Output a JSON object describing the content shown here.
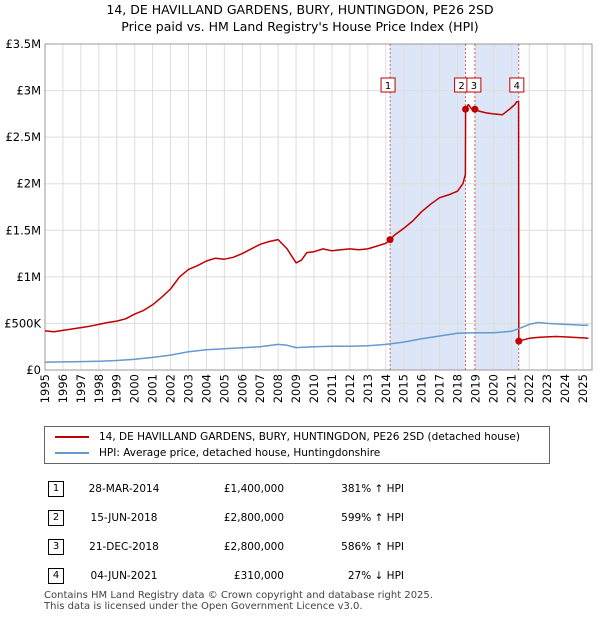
{
  "title_line1": "14, DE HAVILLAND GARDENS, BURY, HUNTINGDON, PE26 2SD",
  "title_line2": "Price paid vs. HM Land Registry's House Price Index (HPI)",
  "colors": {
    "property": "#c00000",
    "hpi": "#6699cc",
    "shade": "#dde6f7",
    "grid": "#dddddd"
  },
  "chart_data": {
    "type": "line",
    "xlim": [
      1995,
      2025.5
    ],
    "ylim": [
      0,
      3500000
    ],
    "y_ticks": [
      {
        "value": 0,
        "label": "£0"
      },
      {
        "value": 500000,
        "label": "£500K"
      },
      {
        "value": 1000000,
        "label": "£1M"
      },
      {
        "value": 1500000,
        "label": "£1.5M"
      },
      {
        "value": 2000000,
        "label": "£2M"
      },
      {
        "value": 2500000,
        "label": "£2.5M"
      },
      {
        "value": 3000000,
        "label": "£3M"
      },
      {
        "value": 3500000,
        "label": "£3.5M"
      }
    ],
    "x_ticks": [
      "1995",
      "1996",
      "1997",
      "1998",
      "1999",
      "2000",
      "2001",
      "2002",
      "2003",
      "2004",
      "2005",
      "2006",
      "2007",
      "2008",
      "2009",
      "2010",
      "2011",
      "2012",
      "2013",
      "2014",
      "2015",
      "2016",
      "2017",
      "2018",
      "2019",
      "2020",
      "2021",
      "2022",
      "2023",
      "2024",
      "2025"
    ],
    "shaded_ranges": [
      [
        2014.24,
        2018.45
      ],
      [
        2018.97,
        2021.42
      ]
    ],
    "series": [
      {
        "name": "14, DE HAVILLAND GARDENS, BURY, HUNTINGDON, PE26 2SD (detached house)",
        "x": [
          1995,
          1995.5,
          1996,
          1996.5,
          1997,
          1997.5,
          1998,
          1998.5,
          1999,
          1999.5,
          2000,
          2000.5,
          2001,
          2001.5,
          2002,
          2002.5,
          2003,
          2003.5,
          2004,
          2004.5,
          2005,
          2005.5,
          2006,
          2006.5,
          2007,
          2007.5,
          2008,
          2008.5,
          2009,
          2009.3,
          2009.6,
          2010,
          2010.5,
          2011,
          2011.5,
          2012,
          2012.5,
          2013,
          2013.5,
          2014,
          2014.24,
          2014.5,
          2015,
          2015.5,
          2016,
          2016.5,
          2017,
          2017.5,
          2018,
          2018.3,
          2018.44,
          2018.45,
          2018.6,
          2018.8,
          2018.97,
          2019.2,
          2019.6,
          2020,
          2020.5,
          2020.9,
          2021.2,
          2021.3,
          2021.41,
          2021.42,
          2021.6,
          2022,
          2022.5,
          2023,
          2023.5,
          2024,
          2024.5,
          2025,
          2025.3
        ],
        "y": [
          420000,
          410000,
          425000,
          440000,
          455000,
          470000,
          490000,
          510000,
          525000,
          550000,
          600000,
          640000,
          700000,
          780000,
          870000,
          1000000,
          1080000,
          1120000,
          1170000,
          1200000,
          1190000,
          1210000,
          1250000,
          1300000,
          1350000,
          1380000,
          1400000,
          1300000,
          1150000,
          1180000,
          1260000,
          1270000,
          1300000,
          1280000,
          1290000,
          1300000,
          1290000,
          1300000,
          1330000,
          1360000,
          1400000,
          1450000,
          1520000,
          1600000,
          1700000,
          1780000,
          1850000,
          1880000,
          1920000,
          2000000,
          2100000,
          2800000,
          2850000,
          2800000,
          2800000,
          2780000,
          2760000,
          2750000,
          2740000,
          2800000,
          2850000,
          2880000,
          2880000,
          310000,
          320000,
          340000,
          350000,
          355000,
          360000,
          355000,
          350000,
          345000,
          340000
        ]
      },
      {
        "name": "HPI: Average price, detached house, Huntingdonshire",
        "x": [
          1995,
          1996,
          1997,
          1998,
          1999,
          2000,
          2001,
          2002,
          2003,
          2004,
          2005,
          2006,
          2007,
          2008,
          2008.5,
          2009,
          2010,
          2011,
          2012,
          2013,
          2014,
          2015,
          2016,
          2017,
          2018,
          2019,
          2020,
          2021,
          2021.5,
          2022,
          2022.5,
          2023,
          2023.5,
          2024,
          2024.5,
          2025,
          2025.3
        ],
        "y": [
          85000,
          87000,
          90000,
          95000,
          102000,
          115000,
          135000,
          160000,
          195000,
          218000,
          228000,
          238000,
          250000,
          275000,
          265000,
          240000,
          250000,
          255000,
          255000,
          260000,
          275000,
          300000,
          335000,
          365000,
          395000,
          400000,
          400000,
          415000,
          450000,
          490000,
          510000,
          500000,
          495000,
          490000,
          485000,
          480000,
          482000
        ]
      }
    ],
    "sales": [
      {
        "id": "1",
        "x": 2014.24,
        "y": 1400000
      },
      {
        "id": "2",
        "x": 2018.45,
        "y": 2800000
      },
      {
        "id": "3",
        "x": 2018.97,
        "y": 2800000
      },
      {
        "id": "4",
        "x": 2021.42,
        "y": 310000
      }
    ]
  },
  "legend": {
    "property_label": "14, DE HAVILLAND GARDENS, BURY, HUNTINGDON, PE26 2SD (detached house)",
    "hpi_label": "HPI: Average price, detached house, Huntingdonshire"
  },
  "transactions": [
    {
      "num": "1",
      "date": "28-MAR-2014",
      "price": "£1,400,000",
      "pct": "381% ↑ HPI"
    },
    {
      "num": "2",
      "date": "15-JUN-2018",
      "price": "£2,800,000",
      "pct": "599% ↑ HPI"
    },
    {
      "num": "3",
      "date": "21-DEC-2018",
      "price": "£2,800,000",
      "pct": "586% ↑ HPI"
    },
    {
      "num": "4",
      "date": "04-JUN-2021",
      "price": "£310,000",
      "pct": "27% ↓ HPI"
    }
  ],
  "footer_line1": "Contains HM Land Registry data © Crown copyright and database right 2025.",
  "footer_line2": "This data is licensed under the Open Government Licence v3.0."
}
